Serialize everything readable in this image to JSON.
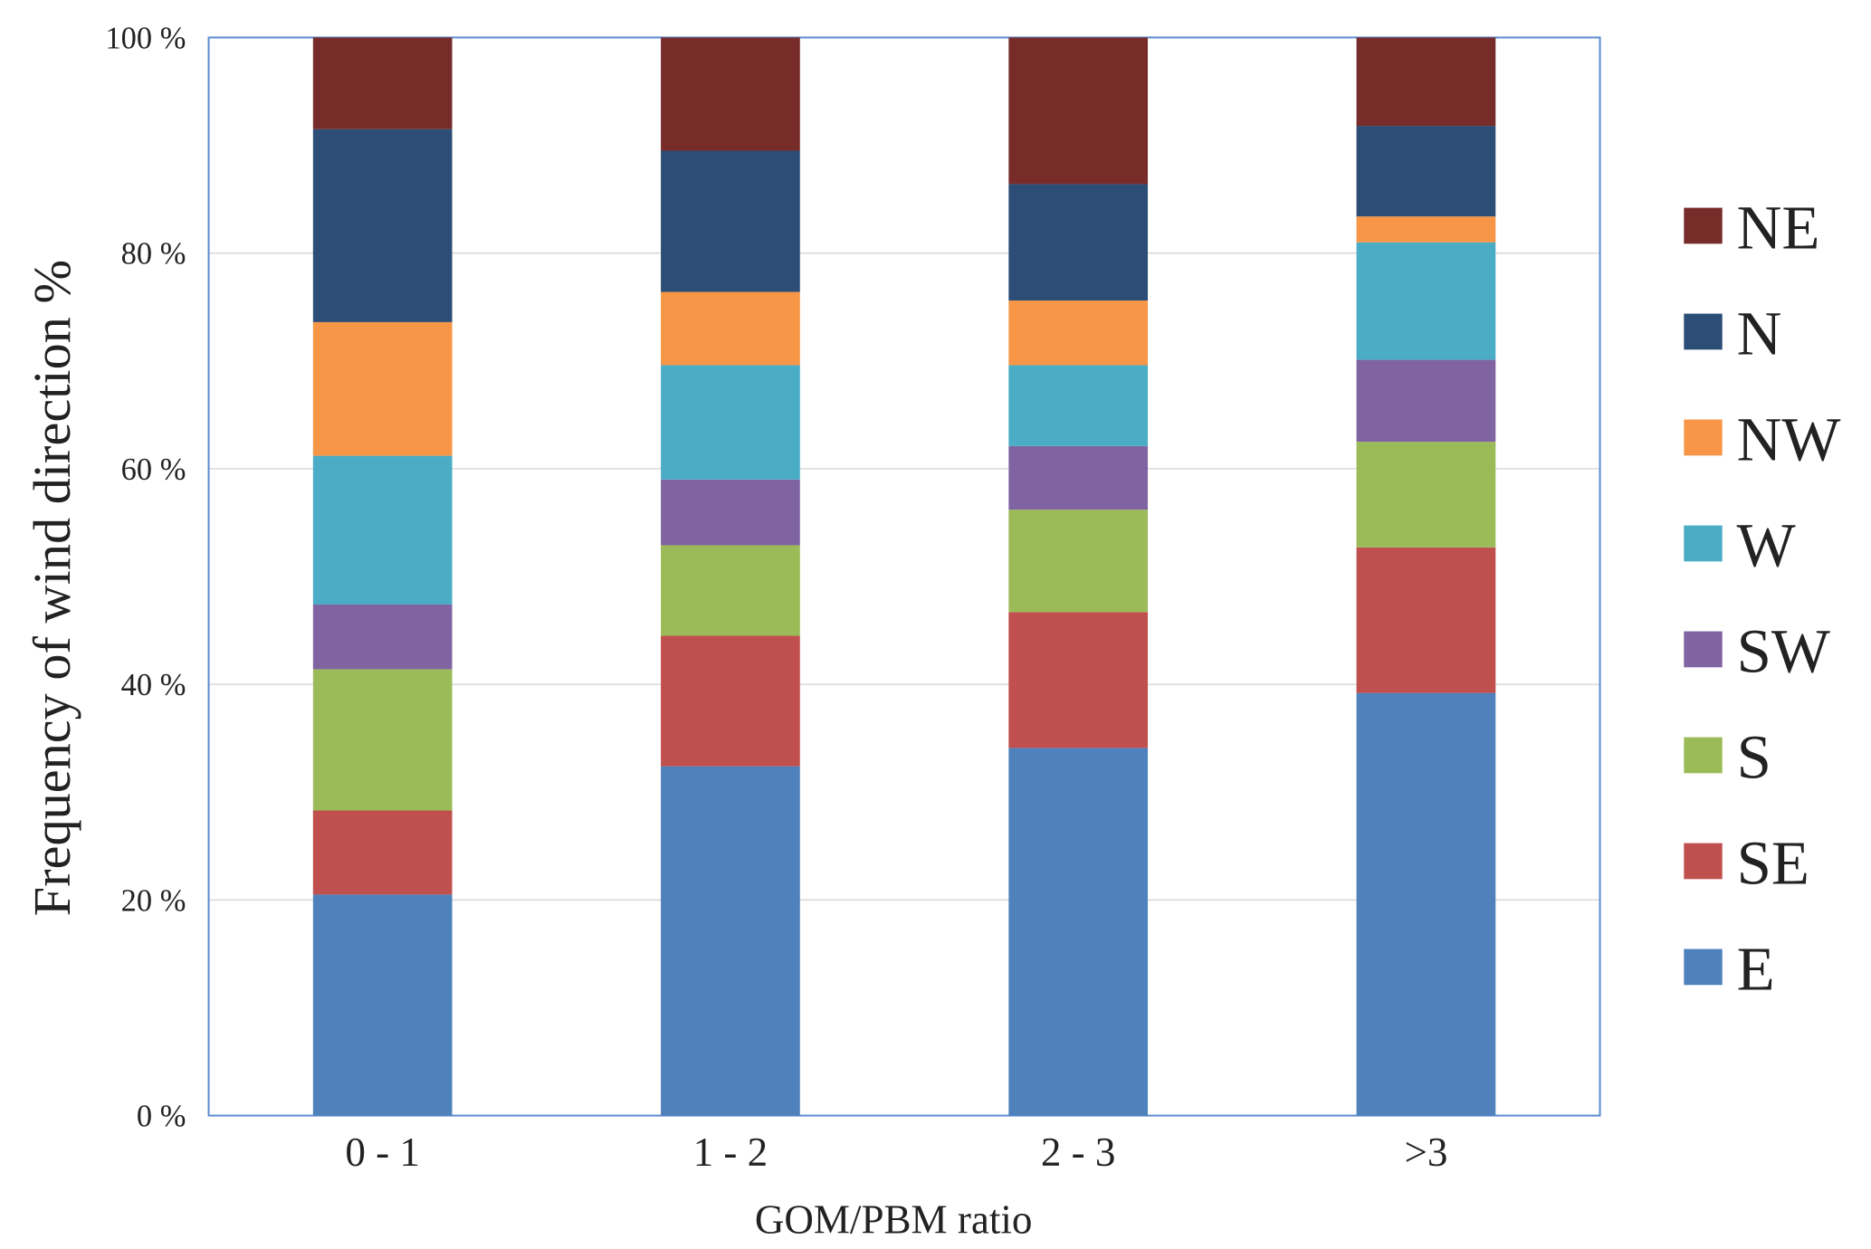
{
  "chart_data": {
    "type": "bar",
    "stacked": true,
    "title": "",
    "xlabel": "GOM/PBM ratio",
    "ylabel": "Frequency of wind direction %",
    "ylim": [
      0,
      100
    ],
    "yticks": [
      "0 %",
      "20 %",
      "40 %",
      "60 %",
      "80 %",
      "100 %"
    ],
    "grid": true,
    "legend_position": "right",
    "categories": [
      "0 - 1",
      "1 - 2",
      "2 - 3",
      ">3"
    ],
    "series": [
      {
        "name": "E",
        "color": "#4F81BD",
        "values": [
          20.5,
          32.4,
          34.1,
          39.2
        ]
      },
      {
        "name": "SE",
        "color": "#C0504D",
        "values": [
          7.8,
          12.1,
          12.6,
          13.5
        ]
      },
      {
        "name": "S",
        "color": "#9BBB59",
        "values": [
          13.1,
          8.4,
          9.5,
          9.8
        ]
      },
      {
        "name": "SW",
        "color": "#8064A2",
        "values": [
          6.0,
          6.1,
          5.9,
          7.6
        ]
      },
      {
        "name": "W",
        "color": "#4BACC6",
        "values": [
          13.8,
          10.6,
          7.5,
          10.9
        ]
      },
      {
        "name": "NW",
        "color": "#F79646",
        "values": [
          12.4,
          6.8,
          6.0,
          2.4
        ]
      },
      {
        "name": "N",
        "color": "#2C4D75",
        "values": [
          17.9,
          13.1,
          10.8,
          8.4
        ]
      },
      {
        "name": "NE",
        "color": "#772C2A",
        "values": [
          8.5,
          10.5,
          13.6,
          8.2
        ]
      }
    ]
  }
}
